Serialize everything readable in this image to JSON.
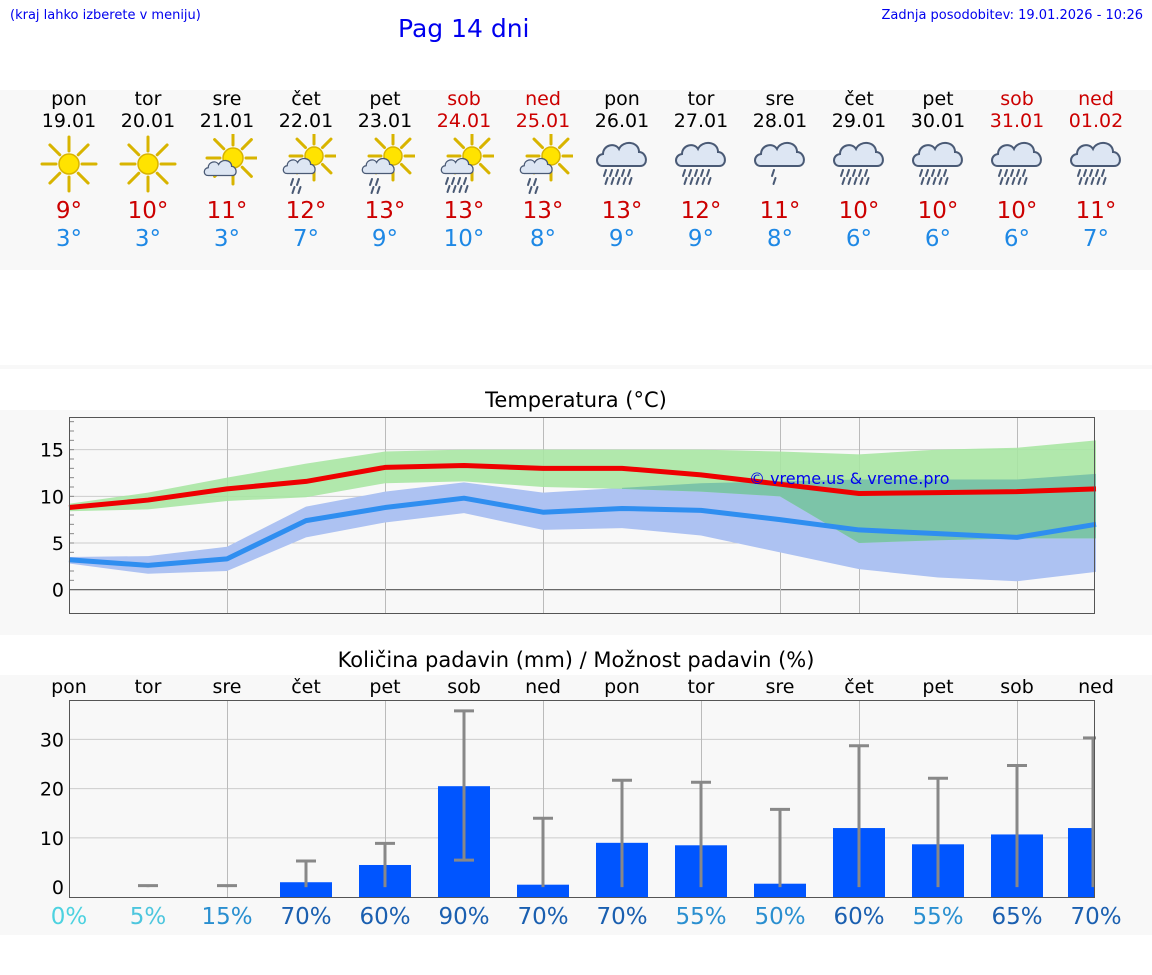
{
  "header": {
    "hint": "(kraj lahko izberete v meniju)",
    "title": "Pag 14 dni",
    "updated": "Zadnja posodobitev: 19.01.2026 - 10:26"
  },
  "days": [
    {
      "name": "pon",
      "date": "19.01",
      "weekend": false,
      "icon": "sunny-icon",
      "tmax": "9°",
      "tmin": "3°"
    },
    {
      "name": "tor",
      "date": "20.01",
      "weekend": false,
      "icon": "sunny-icon",
      "tmax": "10°",
      "tmin": "3°"
    },
    {
      "name": "sre",
      "date": "21.01",
      "weekend": false,
      "icon": "partly-cloudy-icon",
      "tmax": "11°",
      "tmin": "3°"
    },
    {
      "name": "čet",
      "date": "22.01",
      "weekend": false,
      "icon": "sun-cloud-rain-icon",
      "tmax": "12°",
      "tmin": "7°"
    },
    {
      "name": "pet",
      "date": "23.01",
      "weekend": false,
      "icon": "sun-cloud-rain-icon",
      "tmax": "13°",
      "tmin": "9°"
    },
    {
      "name": "sob",
      "date": "24.01",
      "weekend": true,
      "icon": "sun-cloud-heavy-rain-icon",
      "tmax": "13°",
      "tmin": "10°"
    },
    {
      "name": "ned",
      "date": "25.01",
      "weekend": true,
      "icon": "sun-cloud-rain-icon",
      "tmax": "13°",
      "tmin": "8°"
    },
    {
      "name": "pon",
      "date": "26.01",
      "weekend": false,
      "icon": "heavy-rain-icon",
      "tmax": "13°",
      "tmin": "9°"
    },
    {
      "name": "tor",
      "date": "27.01",
      "weekend": false,
      "icon": "heavy-rain-icon",
      "tmax": "12°",
      "tmin": "9°"
    },
    {
      "name": "sre",
      "date": "28.01",
      "weekend": false,
      "icon": "rain-icon",
      "tmax": "11°",
      "tmin": "8°"
    },
    {
      "name": "čet",
      "date": "29.01",
      "weekend": false,
      "icon": "heavy-rain-icon",
      "tmax": "10°",
      "tmin": "6°"
    },
    {
      "name": "pet",
      "date": "30.01",
      "weekend": false,
      "icon": "heavy-rain-icon",
      "tmax": "10°",
      "tmin": "6°"
    },
    {
      "name": "sob",
      "date": "31.01",
      "weekend": true,
      "icon": "heavy-rain-icon",
      "tmax": "10°",
      "tmin": "6°"
    },
    {
      "name": "ned",
      "date": "01.02",
      "weekend": true,
      "icon": "heavy-rain-icon",
      "tmax": "11°",
      "tmin": "7°"
    }
  ],
  "colors": {
    "max_line": "#ee0000",
    "max_band": "#a8e6a3",
    "min_line": "#2f8ef0",
    "min_band": "#adc2f2",
    "overlap_band": "#7cc4a8",
    "bar": "#0055ff",
    "whisker": "#888888",
    "weekend": "#cc0000",
    "prob_low": "#4dd2e0",
    "prob_mid": "#1e88d0",
    "prob_high": "#1a5fb0"
  },
  "chart_data": [
    {
      "type": "line",
      "title": "Temperatura (°C)",
      "watermark": "© vreme.us & vreme.pro",
      "x": [
        0,
        1,
        2,
        3,
        4,
        5,
        6,
        7,
        8,
        9,
        10,
        11,
        12,
        13
      ],
      "ylim": [
        -2.5,
        18.5
      ],
      "yticks": [
        0,
        5,
        10,
        15
      ],
      "series": [
        {
          "name": "max",
          "values": [
            8.8,
            9.6,
            10.8,
            11.6,
            13.1,
            13.3,
            13.0,
            13.0,
            12.3,
            11.3,
            10.3,
            10.4,
            10.5,
            10.8
          ],
          "band_low": [
            8.4,
            8.6,
            9.5,
            9.9,
            11.4,
            11.6,
            11.0,
            10.8,
            10.5,
            10.0,
            5.0,
            5.3,
            5.5,
            5.5
          ],
          "band_high": [
            9.2,
            10.4,
            12.0,
            13.5,
            14.8,
            15.0,
            15.0,
            15.0,
            15.0,
            14.8,
            14.5,
            15.0,
            15.2,
            16.0
          ]
        },
        {
          "name": "min",
          "values": [
            3.2,
            2.6,
            3.3,
            7.4,
            8.8,
            9.8,
            8.3,
            8.7,
            8.5,
            7.5,
            6.4,
            6.0,
            5.6,
            7.0
          ],
          "band_low": [
            2.8,
            1.7,
            2.0,
            5.6,
            7.2,
            8.2,
            6.4,
            6.6,
            5.8,
            4.0,
            2.2,
            1.3,
            0.9,
            1.9
          ],
          "band_high": [
            3.5,
            3.6,
            4.6,
            8.9,
            10.5,
            11.5,
            10.4,
            10.9,
            11.4,
            11.6,
            11.8,
            11.8,
            11.8,
            12.4
          ]
        }
      ]
    },
    {
      "type": "bar",
      "title": "Količina padavin (mm) / Možnost padavin (%)",
      "categories": [
        "pon",
        "tor",
        "sre",
        "čet",
        "pet",
        "sob",
        "ned",
        "pon",
        "tor",
        "sre",
        "čet",
        "pet",
        "sob",
        "ned"
      ],
      "ylim": [
        -2,
        38
      ],
      "yticks": [
        0,
        10,
        20,
        30
      ],
      "ytick_labels": [
        "0",
        "10",
        "20",
        "30"
      ],
      "values": [
        0,
        0,
        0,
        1,
        4.5,
        20.5,
        0.5,
        9,
        8.5,
        0.7,
        12,
        8.7,
        10.7,
        12
      ],
      "range_low": [
        0,
        0,
        0,
        0,
        0,
        5.5,
        0,
        0,
        0,
        0,
        0,
        0,
        0,
        0
      ],
      "range_high": [
        0,
        0.3,
        0.3,
        5.3,
        8.9,
        35.8,
        14,
        21.7,
        21.3,
        15.8,
        28.7,
        22.1,
        24.7,
        30.3
      ],
      "probability": [
        "0%",
        "5%",
        "15%",
        "70%",
        "60%",
        "90%",
        "70%",
        "70%",
        "55%",
        "50%",
        "60%",
        "55%",
        "65%",
        "70%"
      ],
      "probability_values": [
        0,
        5,
        15,
        70,
        60,
        90,
        70,
        70,
        55,
        50,
        60,
        55,
        65,
        70
      ]
    }
  ]
}
